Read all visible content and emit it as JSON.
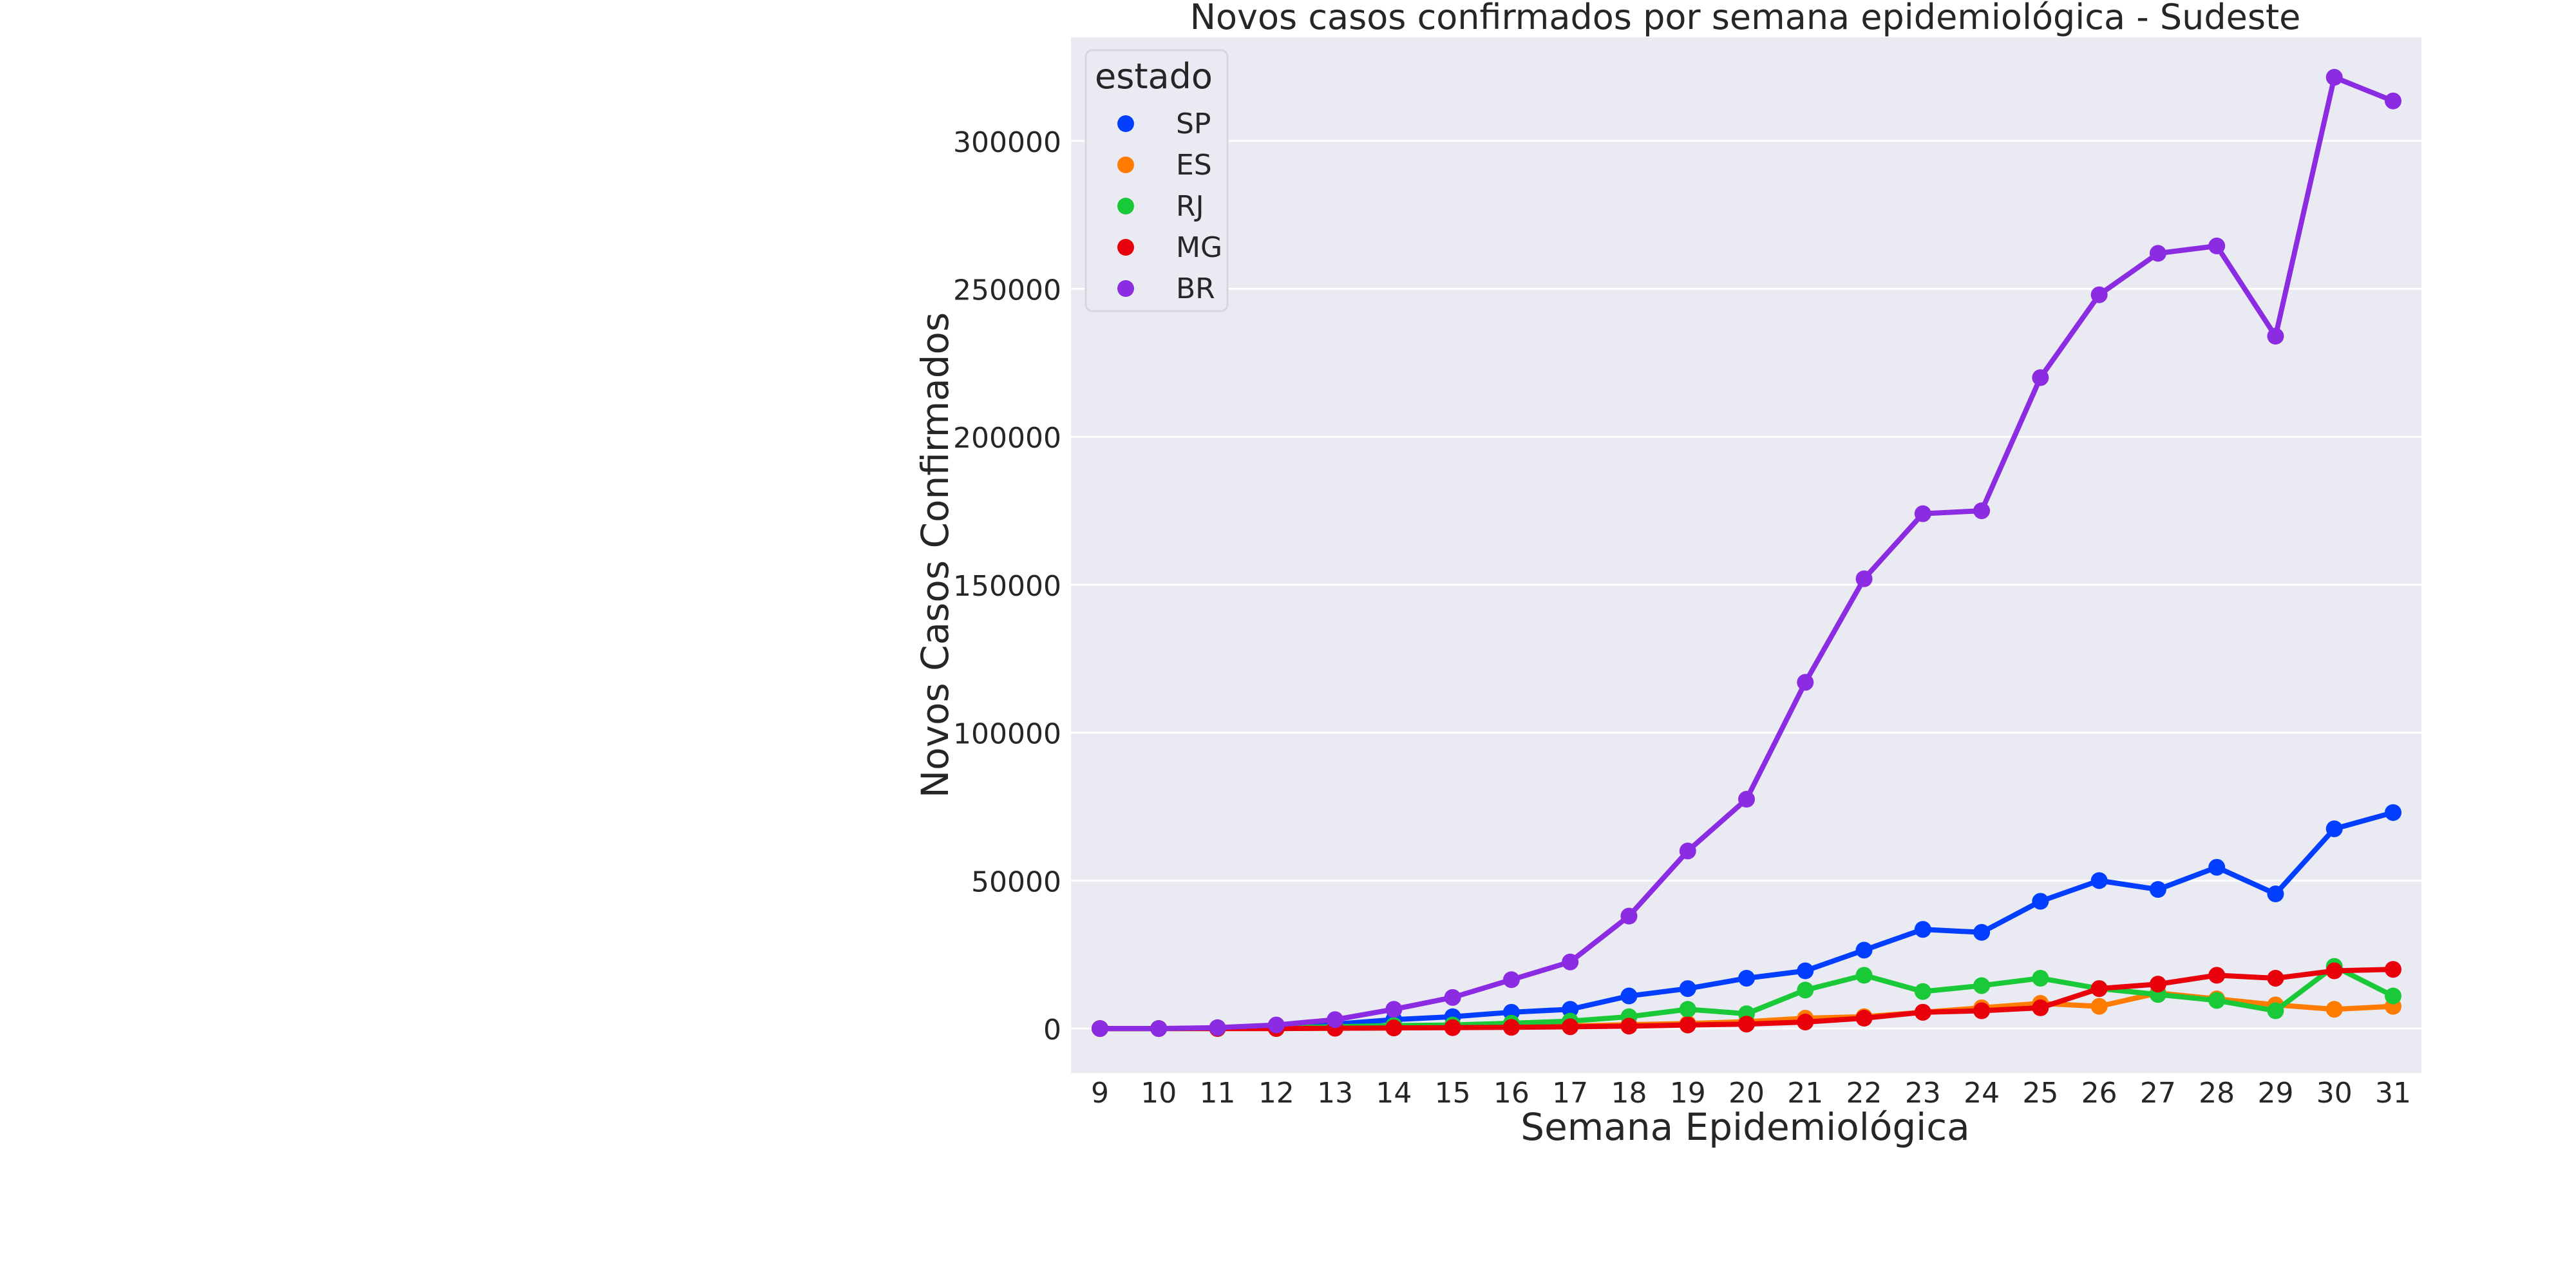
{
  "chart_data": {
    "type": "line",
    "title": "Novos casos confirmados por semana epidemiológica - Sudeste",
    "xlabel": "Semana Epidemiológica",
    "ylabel": "Novos Casos Confirmados",
    "x": [
      9,
      10,
      11,
      12,
      13,
      14,
      15,
      16,
      17,
      18,
      19,
      20,
      21,
      22,
      23,
      24,
      25,
      26,
      27,
      28,
      29,
      30,
      31
    ],
    "ylim": [
      -15000,
      335000
    ],
    "yticks": [
      0,
      50000,
      100000,
      150000,
      200000,
      250000,
      300000
    ],
    "grid": true,
    "legend": {
      "title": "estado",
      "position": "top-left"
    },
    "series": [
      {
        "name": "SP",
        "color": "#023eff",
        "values": [
          0,
          0,
          100,
          500,
          1500,
          3000,
          4000,
          5500,
          6500,
          11000,
          13500,
          17000,
          19500,
          26500,
          33500,
          32500,
          43000,
          50000,
          47000,
          54500,
          45500,
          67500,
          73000
        ]
      },
      {
        "name": "ES",
        "color": "#ff7c00",
        "values": [
          0,
          0,
          0,
          0,
          100,
          200,
          400,
          600,
          900,
          1300,
          1700,
          2300,
          3500,
          4000,
          5500,
          7000,
          8500,
          7500,
          12000,
          10000,
          8000,
          6500,
          7500
        ]
      },
      {
        "name": "RJ",
        "color": "#1ac938",
        "values": [
          0,
          0,
          0,
          300,
          600,
          1000,
          1200,
          1800,
          2500,
          4000,
          6500,
          5000,
          13000,
          18000,
          12500,
          14500,
          17000,
          13500,
          11500,
          9500,
          6000,
          21000,
          11000
        ]
      },
      {
        "name": "MG",
        "color": "#e8000b",
        "values": [
          0,
          0,
          0,
          0,
          100,
          200,
          300,
          400,
          600,
          800,
          1200,
          1500,
          2200,
          3500,
          5500,
          6000,
          7000,
          13500,
          15000,
          18000,
          17000,
          19500,
          20000
        ]
      },
      {
        "name": "BR",
        "color": "#8b2be2",
        "values": [
          0,
          0,
          300,
          1200,
          3000,
          6500,
          10500,
          16500,
          22500,
          38000,
          60000,
          77500,
          117000,
          152000,
          174000,
          175000,
          220000,
          248000,
          262000,
          264500,
          234000,
          321500,
          313500
        ]
      }
    ]
  }
}
